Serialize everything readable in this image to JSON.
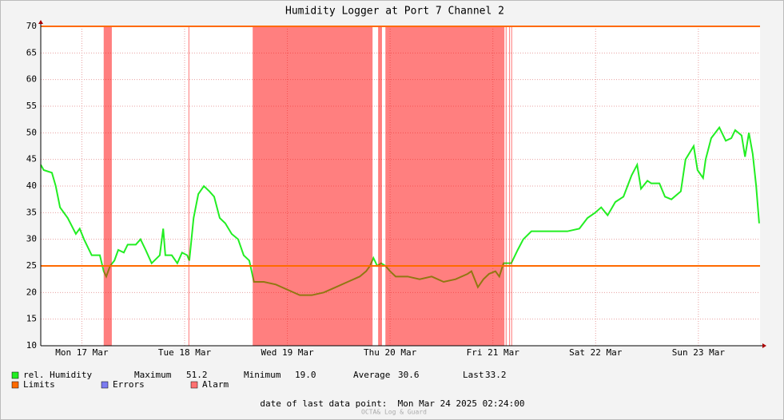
{
  "chart_data": {
    "type": "line",
    "title": "Humidity Logger at Port 7 Channel 2",
    "xlim": [
      0,
      168
    ],
    "xticks": [
      {
        "value": 9.6,
        "label": "Mon 17 Mar"
      },
      {
        "value": 33.6,
        "label": "Tue 18 Mar"
      },
      {
        "value": 57.6,
        "label": "Wed 19 Mar"
      },
      {
        "value": 81.6,
        "label": "Thu 20 Mar"
      },
      {
        "value": 105.6,
        "label": "Fri 21 Mar"
      },
      {
        "value": 129.6,
        "label": "Sat 22 Mar"
      },
      {
        "value": 153.6,
        "label": "Sun 23 Mar"
      }
    ],
    "ylim": [
      10,
      70
    ],
    "yticks": [
      10,
      15,
      20,
      25,
      30,
      35,
      40,
      45,
      50,
      55,
      60,
      65,
      70
    ],
    "grid": true,
    "series": [
      {
        "name": "rel. Humidity",
        "color": "#22ee22",
        "x": [
          0,
          0.7,
          2.6,
          3.5,
          4.5,
          6.3,
          8.2,
          9.1,
          10.1,
          11.9,
          13.8,
          14.7,
          15.3,
          16.2,
          17.2,
          18.1,
          19.4,
          20.3,
          22.2,
          23.3,
          24.5,
          25.9,
          27.8,
          28.6,
          29.1,
          30.6,
          31.9,
          33.0,
          34.2,
          34.7,
          35.7,
          36.8,
          38.1,
          39.4,
          40.5,
          41.8,
          43.1,
          44.6,
          46.1,
          47.4,
          48.7,
          49.8,
          52.1,
          54.9,
          57.7,
          60.5,
          63.3,
          66.1,
          68.9,
          71.7,
          74.5,
          76.0,
          76.9,
          77.7,
          78.6,
          79.5,
          80.5,
          81.6,
          82.9,
          85.7,
          88.5,
          91.3,
          94.1,
          96.9,
          99.7,
          100.6,
          102.1,
          103.4,
          104.7,
          106.2,
          107.1,
          108.1,
          109.9,
          111.4,
          112.7,
          114.6,
          117.4,
          120.2,
          123.0,
          125.8,
          127.7,
          129.5,
          130.9,
          132.4,
          134.2,
          136.1,
          138.0,
          139.3,
          140.2,
          141.7,
          142.6,
          144.5,
          145.8,
          147.3,
          149.5,
          150.6,
          152.5,
          153.4,
          154.7,
          155.3,
          156.6,
          158.5,
          160.0,
          161.3,
          162.2,
          163.7,
          164.5,
          165.4,
          166.3,
          167.1,
          167.8
        ],
        "values": [
          44,
          43,
          42.5,
          40,
          36,
          34,
          31,
          32,
          30,
          27,
          27,
          24,
          23,
          25,
          26,
          28,
          27.5,
          29,
          29,
          30,
          28,
          25.5,
          27,
          32,
          27,
          27,
          25.5,
          27.5,
          27,
          26,
          34,
          38.5,
          40,
          39,
          38,
          34,
          33,
          31,
          30,
          27,
          26,
          22,
          22,
          21.5,
          20.5,
          19.5,
          19.5,
          20,
          21,
          22,
          23,
          24,
          25,
          26.5,
          25,
          25.5,
          25,
          24,
          23,
          23,
          22.5,
          23,
          22,
          22.5,
          23.5,
          24,
          21,
          22.5,
          23.5,
          24,
          23,
          25.5,
          25.5,
          28,
          30,
          31.5,
          31.5,
          31.5,
          31.5,
          32,
          34,
          35,
          36,
          34.5,
          37,
          38,
          42,
          44,
          39.5,
          41,
          40.5,
          40.5,
          38,
          37.5,
          39,
          45,
          47.5,
          43,
          41.5,
          45,
          49,
          51,
          48.5,
          49,
          50.5,
          49.5,
          45.5,
          50,
          46,
          40,
          33
        ]
      }
    ],
    "limits": {
      "name": "Limits",
      "color": "#ff6a00",
      "values": [
        25,
        70
      ]
    },
    "errors": {
      "name": "Errors",
      "color": "#7b7bf0"
    },
    "alarms": {
      "name": "Alarm",
      "color": "#ff7070",
      "ranges": [
        [
          14.7,
          16.6
        ],
        [
          34.5,
          34.7
        ],
        [
          49.5,
          77.5
        ],
        [
          78.8,
          79.7
        ],
        [
          80.5,
          108.3
        ],
        [
          108.6,
          108.8
        ],
        [
          109.4,
          109.6
        ],
        [
          109.9,
          110.1
        ]
      ]
    },
    "stats": [
      {
        "name": "Maximum",
        "value": "51.2"
      },
      {
        "name": "Minimum",
        "value": "19.0"
      },
      {
        "name": "Average",
        "value": "30.6"
      },
      {
        "name": "Last",
        "value": "33.2"
      }
    ],
    "footer": "date of last data point:  Mon Mar 24 2025 02:24:00",
    "watermark": "OCTA& Log & Guard"
  }
}
